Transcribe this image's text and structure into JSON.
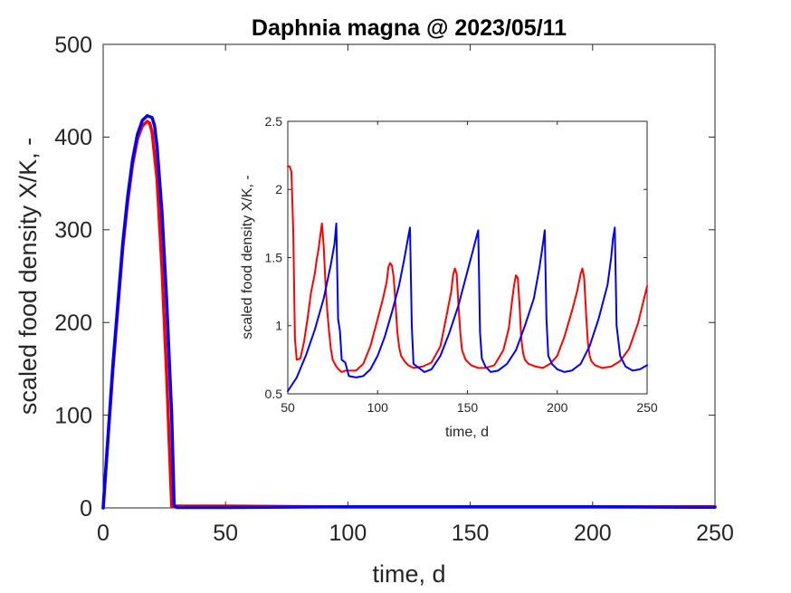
{
  "chart_data": [
    {
      "type": "line",
      "title": "Daphnia magna @ 2023/05/11",
      "xlabel": "time, d",
      "ylabel": "scaled food density X/K, -",
      "xlim": [
        0,
        250
      ],
      "ylim": [
        0,
        500
      ],
      "xticks": [
        0,
        50,
        100,
        150,
        200,
        250
      ],
      "yticks": [
        0,
        100,
        200,
        300,
        400,
        500
      ],
      "xtick_labels": [
        "0",
        "50",
        "100",
        "150",
        "200",
        "250"
      ],
      "ytick_labels": [
        "0",
        "100",
        "200",
        "300",
        "400",
        "500"
      ],
      "grid": false,
      "series": [
        {
          "color": "#ff0000",
          "x": [
            0,
            2,
            4,
            6,
            8,
            10,
            12,
            14,
            16,
            18,
            19,
            20,
            22,
            24,
            26,
            27,
            28,
            30,
            50,
            100,
            150,
            200,
            250
          ],
          "y": [
            0,
            75,
            150,
            215,
            280,
            330,
            370,
            398,
            412,
            417,
            415,
            405,
            355,
            260,
            140,
            70,
            2,
            2.0,
            2.0,
            1.0,
            1.0,
            1.0,
            1.3
          ]
        },
        {
          "color": "#0000ff",
          "x": [
            0,
            2,
            4,
            6,
            8,
            10,
            12,
            14,
            16,
            18,
            20,
            21,
            22,
            24,
            26,
            28,
            29,
            30,
            50,
            100,
            150,
            200,
            250
          ],
          "y": [
            0,
            78,
            155,
            220,
            285,
            335,
            375,
            403,
            418,
            423,
            421,
            412,
            390,
            320,
            220,
            100,
            3,
            0.5,
            0.5,
            1.2,
            1.2,
            1.2,
            0.7
          ]
        }
      ]
    },
    {
      "type": "line",
      "title": "",
      "xlabel": "time, d",
      "ylabel": "scaled food density X/K, -",
      "xlim": [
        50,
        250
      ],
      "ylim": [
        0.5,
        2.5
      ],
      "xticks": [
        50,
        100,
        150,
        200,
        250
      ],
      "yticks": [
        0.5,
        1,
        1.5,
        2,
        2.5
      ],
      "xtick_labels": [
        "50",
        "100",
        "150",
        "200",
        "250"
      ],
      "ytick_labels": [
        "0.5",
        "1",
        "1.5",
        "2",
        "2.5"
      ],
      "grid": false,
      "series": [
        {
          "color": "#ff0000",
          "x": [
            50,
            51,
            52,
            53,
            54,
            55,
            57,
            59,
            61,
            63,
            65,
            66,
            67,
            68,
            69,
            70,
            71,
            72,
            73,
            74,
            75,
            77,
            79,
            80,
            82,
            85,
            88,
            92,
            96,
            100,
            103,
            105,
            106,
            107,
            108,
            109,
            110,
            111,
            112,
            113,
            115,
            117,
            120,
            125,
            130,
            135,
            138,
            141,
            142,
            143,
            144,
            145,
            146,
            147,
            149,
            152,
            156,
            160,
            165,
            170,
            173,
            175,
            176,
            177,
            178,
            179,
            180,
            181,
            182,
            184,
            188,
            192,
            196,
            200,
            204,
            208,
            211,
            213,
            214,
            215,
            216,
            217,
            218,
            219,
            221,
            225,
            230,
            235,
            240,
            245,
            250
          ],
          "y": [
            2.17,
            2.17,
            2.13,
            1.7,
            0.9,
            0.75,
            0.76,
            0.88,
            1.05,
            1.25,
            1.38,
            1.48,
            1.55,
            1.65,
            1.75,
            1.58,
            1.3,
            1.1,
            0.95,
            0.83,
            0.75,
            0.7,
            0.67,
            0.66,
            0.67,
            0.67,
            0.67,
            0.72,
            0.85,
            1.05,
            1.2,
            1.32,
            1.43,
            1.46,
            1.44,
            1.35,
            1.15,
            0.95,
            0.84,
            0.78,
            0.74,
            0.71,
            0.69,
            0.7,
            0.73,
            0.85,
            1.05,
            1.25,
            1.37,
            1.42,
            1.38,
            1.15,
            0.95,
            0.82,
            0.75,
            0.71,
            0.69,
            0.69,
            0.71,
            0.82,
            0.98,
            1.2,
            1.3,
            1.37,
            1.35,
            1.15,
            0.9,
            0.8,
            0.75,
            0.72,
            0.7,
            0.69,
            0.72,
            0.78,
            0.92,
            1.1,
            1.25,
            1.38,
            1.42,
            1.35,
            1.1,
            0.88,
            0.78,
            0.74,
            0.71,
            0.69,
            0.7,
            0.74,
            0.83,
            1.02,
            1.29
          ]
        },
        {
          "color": "#0000ff",
          "x": [
            50,
            55,
            60,
            65,
            70,
            74,
            76,
            77,
            78,
            79,
            80,
            82,
            84,
            88,
            92,
            96,
            100,
            104,
            108,
            112,
            115,
            117,
            118,
            119,
            120,
            122,
            126,
            130,
            135,
            140,
            145,
            150,
            153,
            155,
            156,
            157,
            158,
            160,
            163,
            167,
            172,
            177,
            182,
            187,
            190,
            192,
            193,
            194,
            195,
            197,
            200,
            204,
            208,
            213,
            218,
            223,
            228,
            230,
            231,
            232,
            233,
            235,
            238,
            242,
            246,
            250
          ],
          "y": [
            0.52,
            0.62,
            0.78,
            0.97,
            1.2,
            1.45,
            1.6,
            1.75,
            1.05,
            0.96,
            0.75,
            0.73,
            0.63,
            0.62,
            0.63,
            0.68,
            0.78,
            0.92,
            1.1,
            1.3,
            1.5,
            1.65,
            1.72,
            1.0,
            0.72,
            0.7,
            0.66,
            0.68,
            0.78,
            0.95,
            1.15,
            1.4,
            1.55,
            1.65,
            1.7,
            0.95,
            0.76,
            0.7,
            0.66,
            0.67,
            0.72,
            0.82,
            1.0,
            1.2,
            1.42,
            1.6,
            1.7,
            1.05,
            0.78,
            0.72,
            0.68,
            0.66,
            0.67,
            0.72,
            0.85,
            1.05,
            1.3,
            1.5,
            1.64,
            1.72,
            1.0,
            0.78,
            0.7,
            0.67,
            0.68,
            0.71
          ]
        }
      ]
    }
  ]
}
